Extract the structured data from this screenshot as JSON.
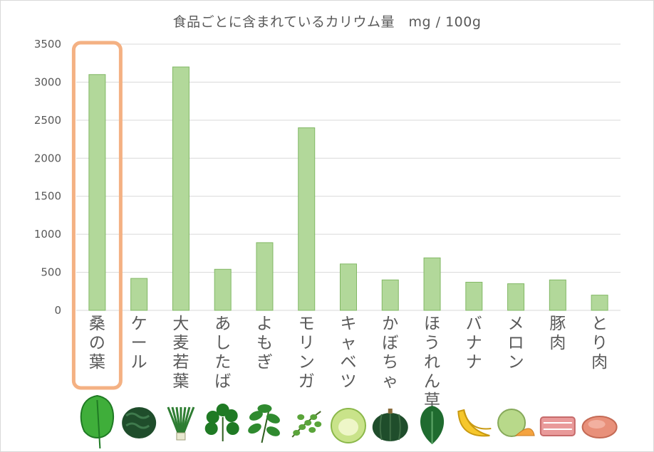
{
  "colors": {
    "bar_fill": "#b2d89a",
    "bar_stroke": "#82b865",
    "grid": "#d9d9d9",
    "text": "#595959",
    "highlight": "#f4b183"
  },
  "chart_data": {
    "type": "bar",
    "title": "食品ごとに含まれているカリウム量　mg / 100g",
    "xlabel": "",
    "ylabel": "",
    "ylim": [
      0,
      3500
    ],
    "yticks": [
      0,
      500,
      1000,
      1500,
      2000,
      2500,
      3000,
      3500
    ],
    "grid": true,
    "legend": "none",
    "categories": [
      "桑の葉",
      "ケール",
      "大麦若葉",
      "あしたば",
      "よもぎ",
      "モリンガ",
      "キャベツ",
      "かぼちゃ",
      "ほうれん草",
      "バナナ",
      "メロン",
      "豚肉",
      "とり肉"
    ],
    "values": [
      3100,
      420,
      3200,
      540,
      890,
      2400,
      610,
      400,
      690,
      370,
      350,
      400,
      200
    ],
    "highlighted_category": "桑の葉",
    "category_icons": [
      "mulberry-leaf-icon",
      "kale-icon",
      "barley-grass-icon",
      "ashitaba-icon",
      "mugwort-icon",
      "moringa-icon",
      "cabbage-icon",
      "pumpkin-icon",
      "spinach-icon",
      "banana-icon",
      "melon-icon",
      "pork-icon",
      "chicken-icon"
    ]
  }
}
